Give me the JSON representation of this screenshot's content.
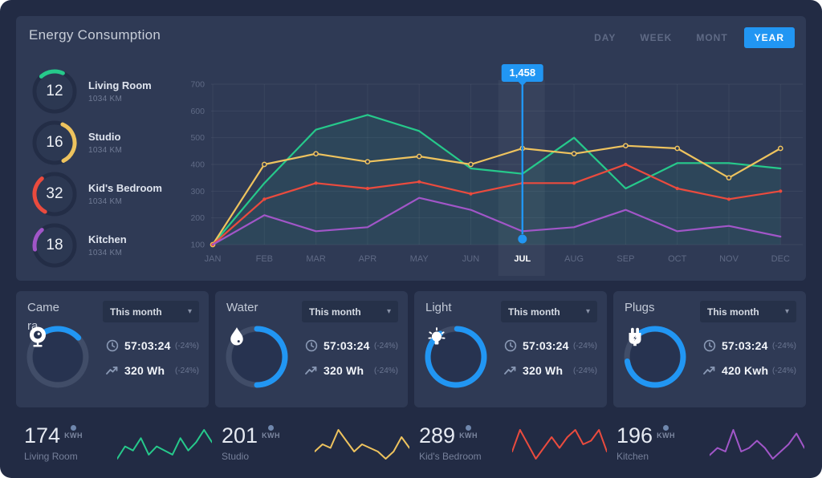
{
  "header": {
    "title": "Energy Consumption",
    "tabs": [
      {
        "label": "DAY",
        "active": false
      },
      {
        "label": "WEEK",
        "active": false
      },
      {
        "label": "MONT",
        "active": false
      },
      {
        "label": "YEAR",
        "active": true
      }
    ]
  },
  "gauges": [
    {
      "value": "12",
      "label": "Living Room",
      "sub": "1034 KM",
      "color": "#26c98b",
      "arc_start": -40,
      "arc_sweep": 18
    },
    {
      "value": "16",
      "label": "Studio",
      "sub": "1034 KM",
      "color": "#eec35e",
      "arc_start": 25,
      "arc_sweep": 36
    },
    {
      "value": "32",
      "label": "Kid's Bedroom",
      "sub": "1034 KM",
      "color": "#ea4b3e",
      "arc_start": -150,
      "arc_sweep": 31
    },
    {
      "value": "18",
      "label": "Kitchen",
      "sub": "1034 KM",
      "color": "#a156c8",
      "arc_start": -100,
      "arc_sweep": 17
    }
  ],
  "chart_data": {
    "type": "line",
    "categories": [
      "JAN",
      "FEB",
      "MAR",
      "APR",
      "MAY",
      "JUN",
      "JUL",
      "AUG",
      "SEP",
      "OCT",
      "NOV",
      "DEC"
    ],
    "series": [
      {
        "name": "Living Room",
        "color": "#26c98b",
        "values": [
          100,
          330,
          530,
          585,
          525,
          385,
          365,
          500,
          310,
          405,
          405,
          385
        ]
      },
      {
        "name": "Studio",
        "color": "#eec35e",
        "values": [
          100,
          400,
          440,
          410,
          430,
          400,
          460,
          440,
          470,
          460,
          350,
          460
        ]
      },
      {
        "name": "Kid's Bedroom",
        "color": "#ea4b3e",
        "values": [
          100,
          270,
          330,
          310,
          335,
          290,
          330,
          330,
          400,
          310,
          270,
          300
        ]
      },
      {
        "name": "Kitchen",
        "color": "#a156c8",
        "values": [
          100,
          210,
          150,
          165,
          275,
          230,
          150,
          165,
          230,
          150,
          170,
          130
        ]
      }
    ],
    "ylim": [
      100,
      700
    ],
    "ytick_step": 100,
    "grid": true,
    "legend": false,
    "highlight": {
      "category": "JUL",
      "index": 6,
      "tooltip": "1,458"
    }
  },
  "cards": [
    {
      "title": "Camera",
      "period": "This month",
      "icon": "camera",
      "arc_start": -50,
      "arc_sweep": 27,
      "time": "57:03:24",
      "time_delta": "(-24%)",
      "energy": "320 Wh",
      "energy_delta": "(-24%)"
    },
    {
      "title": "Water",
      "period": "This month",
      "icon": "water",
      "arc_start": 0,
      "arc_sweep": 50,
      "time": "57:03:24",
      "time_delta": "(-24%)",
      "energy": "320 Wh",
      "energy_delta": "(-24%)"
    },
    {
      "title": "Light",
      "period": "This month",
      "icon": "light",
      "arc_start": 2,
      "arc_sweep": 90,
      "time": "57:03:24",
      "time_delta": "(-24%)",
      "energy": "320 Wh",
      "energy_delta": "(-24%)"
    },
    {
      "title": "Plugs",
      "period": "This month",
      "icon": "plug",
      "arc_start": -45,
      "arc_sweep": 85,
      "time": "57:03:24",
      "time_delta": "(-24%)",
      "energy": "420 Kwh",
      "energy_delta": "(-24%)"
    }
  ],
  "bottom_stats": [
    {
      "value": "174",
      "unit": "KWH",
      "label": "Living Room",
      "color": "#26c98b",
      "spark": [
        1,
        4,
        3,
        6,
        2,
        4,
        3,
        2,
        6,
        3,
        5,
        8,
        5
      ]
    },
    {
      "value": "201",
      "unit": "KWH",
      "label": "Studio",
      "color": "#eec35e",
      "spark": [
        3,
        5,
        4,
        9,
        6,
        3,
        5,
        4,
        3,
        1,
        3,
        7,
        4
      ]
    },
    {
      "value": "289",
      "unit": "KWH",
      "label": "Kid's Bedroom",
      "color": "#ea4b3e",
      "spark": [
        3,
        9,
        5,
        1,
        4,
        7,
        4,
        7,
        9,
        5,
        6,
        9,
        3
      ]
    },
    {
      "value": "196",
      "unit": "KWH",
      "label": "Kitchen",
      "color": "#a156c8",
      "spark": [
        2,
        4,
        3,
        9,
        3,
        4,
        6,
        4,
        1,
        3,
        5,
        8,
        4
      ]
    }
  ],
  "colors": {
    "accent_blue": "#2196f3",
    "panel_bg": "#2f3a55",
    "outer_bg": "#222b44",
    "ring_track": "#414d68",
    "ring_inner": "#273350",
    "gauge_track": "#232d46",
    "gauge_inner": "#2c3852",
    "muted_text": "#5f6a85"
  }
}
